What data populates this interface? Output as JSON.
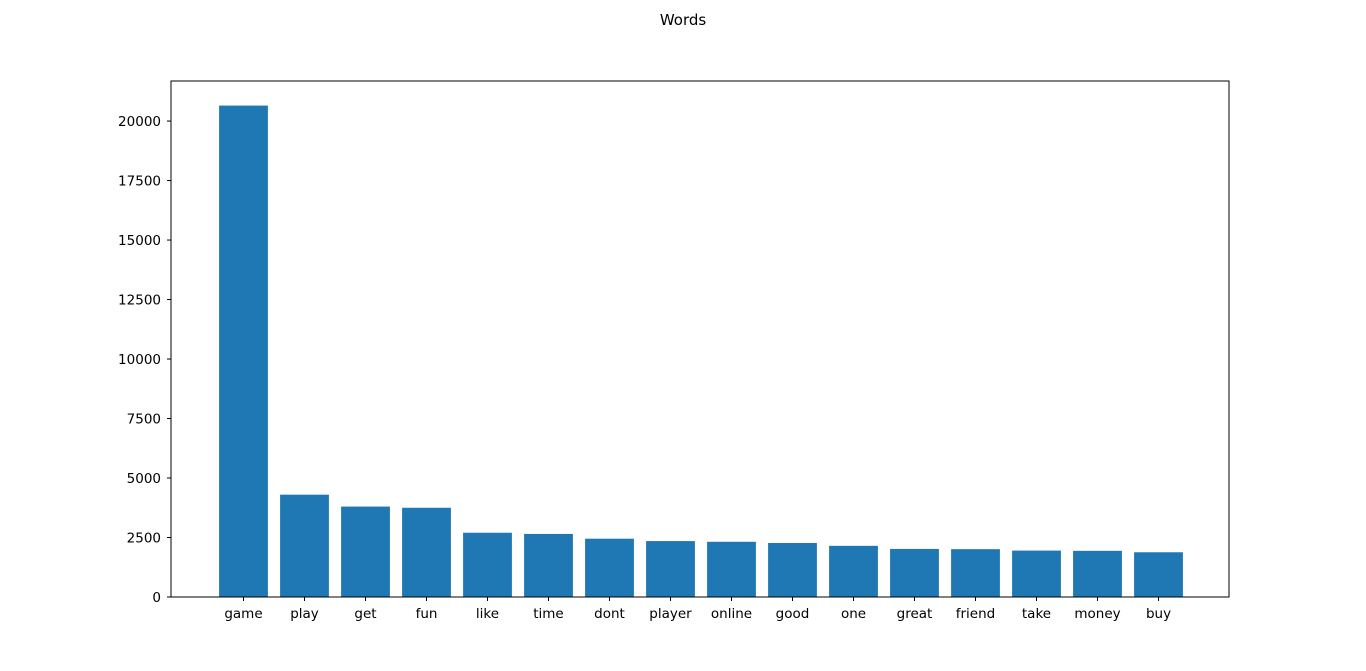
{
  "chart_data": {
    "type": "bar",
    "title": "Words",
    "xlabel": "",
    "ylabel": "",
    "categories": [
      "game",
      "play",
      "get",
      "fun",
      "like",
      "time",
      "dont",
      "player",
      "online",
      "good",
      "one",
      "great",
      "friend",
      "take",
      "money",
      "buy"
    ],
    "values": [
      20650,
      4300,
      3800,
      3750,
      2700,
      2650,
      2450,
      2350,
      2320,
      2270,
      2150,
      2020,
      2010,
      1950,
      1940,
      1880
    ],
    "ylim": [
      0,
      21683
    ],
    "yticks": [
      0,
      2500,
      5000,
      7500,
      10000,
      12500,
      15000,
      17500,
      20000
    ],
    "ytick_labels": [
      "0",
      "2500",
      "5000",
      "7500",
      "10000",
      "12500",
      "15000",
      "17500",
      "20000"
    ],
    "bar_color": "#1f77b4",
    "grid": false,
    "legend": "none"
  }
}
